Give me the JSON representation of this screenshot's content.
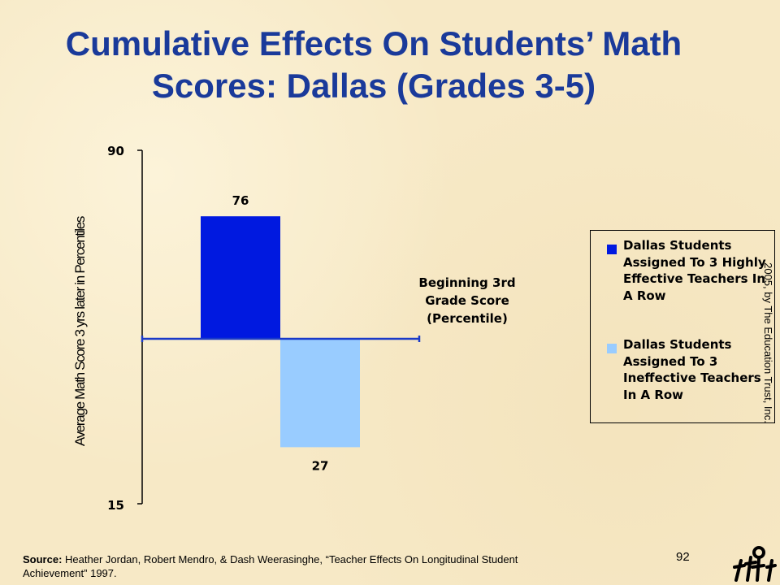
{
  "title": {
    "line1": "Cumulative Effects On Students’ Math",
    "line2": "Scores: Dallas (Grades 3-5)"
  },
  "chart_data": {
    "type": "bar",
    "title": "Cumulative Effects On Students’ Math Scores: Dallas (Grades 3-5)",
    "ylabel": "Average Math Score 3 yrs later in Percentiles",
    "ylim": [
      15,
      90
    ],
    "yticks": [
      "90",
      "15"
    ],
    "baseline": 50,
    "baseline_label": "Beginning 3rd Grade Score (Percentile)",
    "grid": false,
    "legend_position": "right",
    "series": [
      {
        "name": "Dallas Students Assigned To 3 Highly Effective Teachers In A Row",
        "values": [
          76
        ],
        "color": "#0019e0",
        "label": "76"
      },
      {
        "name": "Dallas Students Assigned To 3 Ineffective Teachers In A Row",
        "values": [
          27
        ],
        "color": "#99ccff",
        "label": "27"
      }
    ]
  },
  "legend": {
    "items": [
      {
        "text": "Dallas Students Assigned To 3 Highly Effective Teachers In A Row",
        "color": "#0019e0"
      },
      {
        "text": "Dallas Students Assigned To 3 Ineffective Teachers In A Row",
        "color": "#99ccff"
      }
    ]
  },
  "footer": {
    "source_label": "Source:",
    "source_text": " Heather Jordan, Robert Mendro, & Dash Weerasinghe, “Teacher Effects On Longitudinal Student Achievement” 1997.",
    "page_number": "92",
    "copyright": "2005, by The Education Trust, Inc."
  },
  "colors": {
    "title": "#1a3a9a",
    "axis_line": "#000000",
    "baseline_line": "#1a3ac8",
    "background": "#f7e9c6"
  },
  "logo_icon": "education-trust-figures-logo"
}
